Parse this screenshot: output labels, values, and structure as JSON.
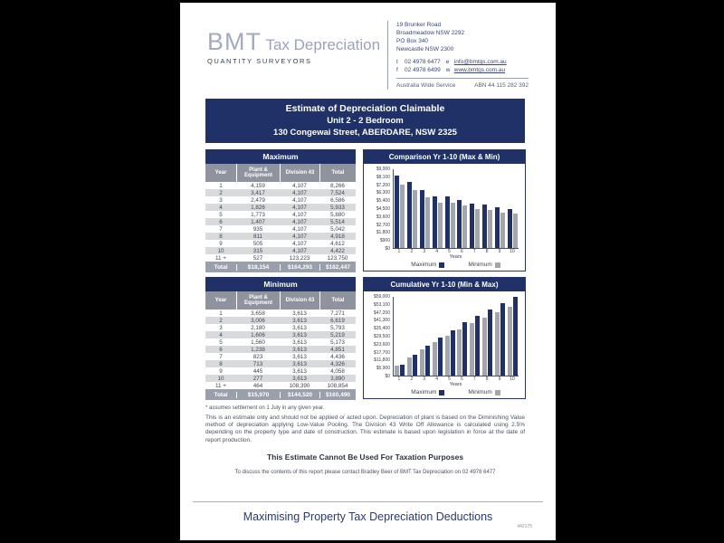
{
  "page": {
    "header": {
      "logo_bmt": "BMT",
      "logo_tax": "Tax Depreciation",
      "logo_tagline": "QUANTITY SURVEYORS",
      "address_lines": [
        "19 Brunker Road",
        "Broadmeadow NSW 2292",
        "PO Box 340",
        "Newcastle NSW 2300"
      ],
      "contact": {
        "phone_prefix": "t",
        "phone": "02 4978 6477",
        "email_prefix": "e",
        "email": "info@bmtqs.com.au",
        "fax_prefix": "f",
        "fax": "02 4978 6499",
        "web_prefix": "w",
        "web": "www.bmtqs.com.au"
      },
      "service": "Australia Wide Service",
      "abn": "ABN 44 115 282 392"
    },
    "title_block": {
      "line1": "Estimate of Depreciation Claimable",
      "line2": "Unit 2 - 2 Bedroom",
      "line3": "130 Congewai Street, ABERDARE, NSW 2325"
    },
    "tables": [
      {
        "title": "Maximum",
        "columns": [
          "Year",
          "Plant & Equipment",
          "Division 43",
          "Total"
        ],
        "rows": [
          [
            "1",
            "4,159",
            "4,107",
            "8,266"
          ],
          [
            "2",
            "3,417",
            "4,107",
            "7,524"
          ],
          [
            "3",
            "2,479",
            "4,107",
            "6,586"
          ],
          [
            "4",
            "1,826",
            "4,107",
            "5,933"
          ],
          [
            "5",
            "1,773",
            "4,107",
            "5,880"
          ],
          [
            "6",
            "1,407",
            "4,107",
            "5,514"
          ],
          [
            "7",
            "935",
            "4,107",
            "5,042"
          ],
          [
            "8",
            "811",
            "4,107",
            "4,918"
          ],
          [
            "9",
            "505",
            "4,107",
            "4,612"
          ],
          [
            "10",
            "315",
            "4,107",
            "4,422"
          ],
          [
            "11 +",
            "527",
            "123,223",
            "123,750"
          ]
        ],
        "total_row": [
          "Total",
          "$18,154",
          "$164,293",
          "$182,447"
        ]
      },
      {
        "title": "Minimum",
        "columns": [
          "Year",
          "Plant & Equipment",
          "Division 43",
          "Total"
        ],
        "rows": [
          [
            "1",
            "3,658",
            "3,613",
            "7,271"
          ],
          [
            "2",
            "3,006",
            "3,613",
            "6,619"
          ],
          [
            "3",
            "2,180",
            "3,613",
            "5,793"
          ],
          [
            "4",
            "1,606",
            "3,613",
            "5,219"
          ],
          [
            "5",
            "1,560",
            "3,613",
            "5,173"
          ],
          [
            "6",
            "1,238",
            "3,613",
            "4,851"
          ],
          [
            "7",
            "823",
            "3,613",
            "4,436"
          ],
          [
            "8",
            "713",
            "3,613",
            "4,326"
          ],
          [
            "9",
            "445",
            "3,613",
            "4,058"
          ],
          [
            "10",
            "277",
            "3,613",
            "3,890"
          ],
          [
            "11 +",
            "464",
            "108,390",
            "108,854"
          ]
        ],
        "total_row": [
          "Total",
          "$15,970",
          "$144,520",
          "$160,490"
        ]
      }
    ],
    "notes": {
      "settlement_note": "* assumes settlement on 1 July in any given year.",
      "paragraph": "This is an estimate only and should not be applied or acted upon. Depreciation of plant is based on the Diminishing Value method of depreciation applying Low-Value Pooling. The Division 43 Write Off Allowance is calculated using 2.5% depending on the property type and date of construction. This estimate is based upon legislation in force at the date of report production.",
      "disclaimer": "This Estimate Cannot Be Used For Taxation Purposes",
      "contact_note": "To discuss the contents of this report please contact Bradley Beer of BMT Tax Depreciation on 02 4978 6477"
    },
    "footer": {
      "tagline": "Maximising Property Tax Depreciation Deductions",
      "reference": "442175"
    },
    "colors": {
      "navy": "#1f3166",
      "bar_gray": "#a3a6ad",
      "header_gray": "#8e939e",
      "total_gray": "#9aa0ab",
      "alt_row": "#d8dade"
    }
  },
  "chart_data": [
    {
      "type": "bar",
      "title": "Comparison Yr 1-10 (Max & Min)",
      "categories": [
        "1",
        "2",
        "3",
        "4",
        "5",
        "6",
        "7",
        "8",
        "9",
        "10"
      ],
      "series": [
        {
          "name": "Maximum",
          "color": "#1f3166",
          "values": [
            8266,
            7524,
            6586,
            5933,
            5880,
            5514,
            5042,
            4918,
            4612,
            4422
          ]
        },
        {
          "name": "Minimum",
          "color": "#a3a6ad",
          "values": [
            7271,
            6619,
            5793,
            5219,
            5173,
            4851,
            4436,
            4326,
            4058,
            3890
          ]
        }
      ],
      "xlabel": "Years",
      "ylim": [
        0,
        9000
      ],
      "ytick_labels": [
        "$0",
        "$900",
        "$1,800",
        "$2,700",
        "$3,600",
        "$4,500",
        "$5,400",
        "$6,300",
        "$7,200",
        "$8,100",
        "$9,000"
      ],
      "legend": [
        "Maximum",
        "Minimum"
      ],
      "legend_position": "bottom",
      "grid": false
    },
    {
      "type": "bar",
      "title": "Cumulative Yr 1-10 (Min & Max)",
      "categories": [
        "1",
        "2",
        "3",
        "4",
        "5",
        "6",
        "7",
        "8",
        "9",
        "10"
      ],
      "series": [
        {
          "name": "Minimum",
          "color": "#a3a6ad",
          "values": [
            7271,
            13890,
            19683,
            24902,
            30075,
            34926,
            39362,
            43688,
            47746,
            51636
          ]
        },
        {
          "name": "Maximum",
          "color": "#1f3166",
          "values": [
            8266,
            15790,
            22376,
            28309,
            34189,
            39703,
            44745,
            49663,
            54275,
            58697
          ]
        }
      ],
      "xlabel": "Years",
      "ylim": [
        0,
        59000
      ],
      "ytick_labels": [
        "$0",
        "$5,900",
        "$11,800",
        "$17,700",
        "$23,600",
        "$29,500",
        "$35,400",
        "$41,300",
        "$47,200",
        "$53,100",
        "$59,000"
      ],
      "legend": [
        "Maximum",
        "Minimum"
      ],
      "legend_position": "bottom",
      "grid": false
    }
  ]
}
